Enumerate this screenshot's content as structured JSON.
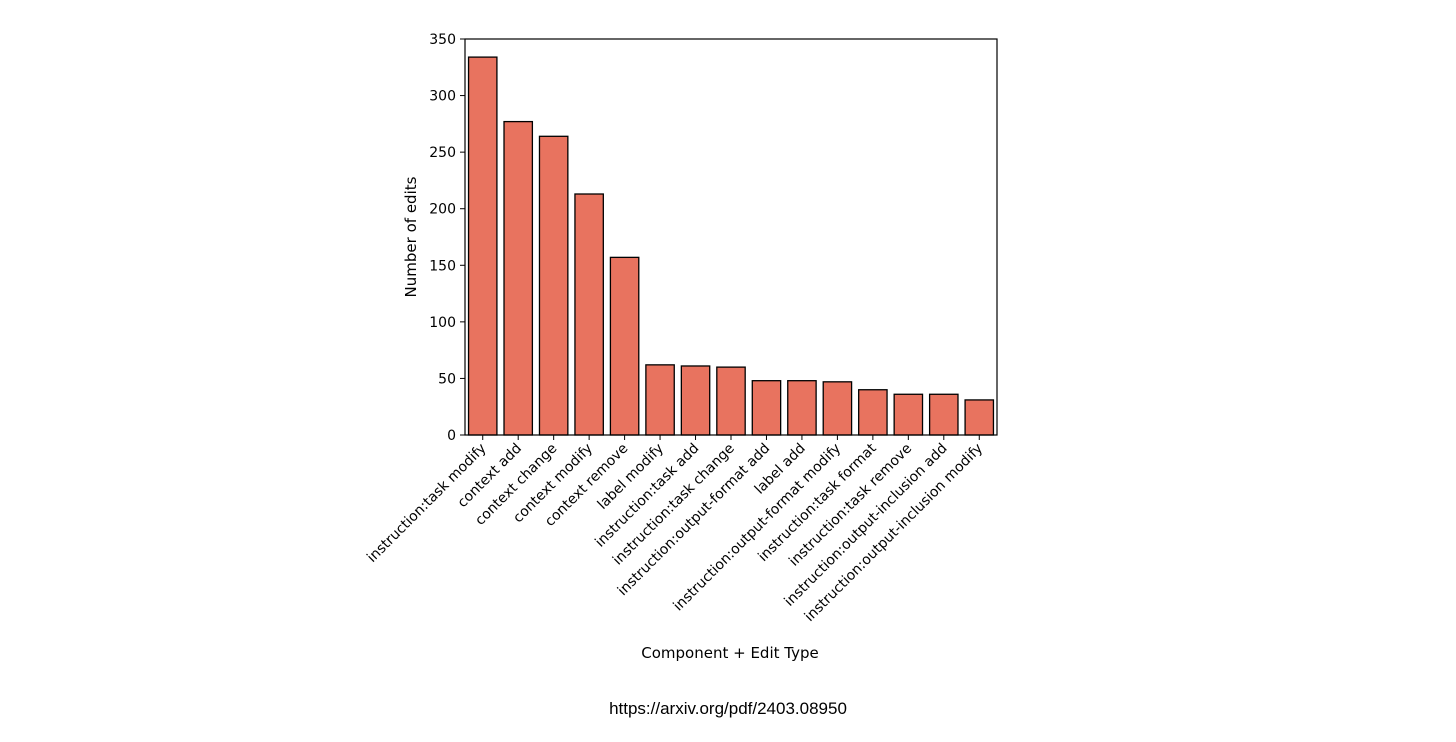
{
  "chart_data": {
    "type": "bar",
    "categories": [
      "instruction:task modify",
      "context add",
      "context change",
      "context modify",
      "context remove",
      "label modify",
      "instruction:task add",
      "instruction:task change",
      "instruction:output-format add",
      "label add",
      "instruction:output-format modify",
      "instruction:task format",
      "instruction:task remove",
      "instruction:output-inclusion add",
      "instruction:output-inclusion modify"
    ],
    "values": [
      334,
      277,
      264,
      213,
      157,
      62,
      61,
      60,
      48,
      48,
      47,
      40,
      36,
      36,
      31
    ],
    "xlabel": "Component + Edit Type",
    "ylabel": "Number of edits",
    "ylim": [
      0,
      350
    ],
    "yticks": [
      0,
      50,
      100,
      150,
      200,
      250,
      300,
      350
    ],
    "grid": false,
    "bar_color": "#E8735F",
    "edge_color": "#000000"
  },
  "caption": "https://arxiv.org/pdf/2403.08950"
}
